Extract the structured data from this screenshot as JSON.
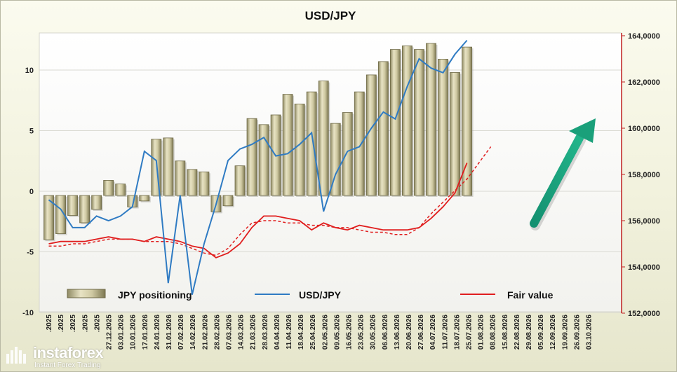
{
  "chart_data": {
    "type": "bar+line",
    "title": "USD/JPY",
    "left_axis": {
      "min": -10,
      "max": 13,
      "ticks": [
        -10,
        -5,
        0,
        5,
        10
      ]
    },
    "right_axis": {
      "min": 152000,
      "max": 164000,
      "ticks": [
        "152,0000",
        "154,0000",
        "156,0000",
        "158,0000",
        "160,0000",
        "162,0000",
        "164,0000"
      ],
      "tick_values": [
        152000,
        154000,
        156000,
        158000,
        160000,
        162000,
        164000
      ]
    },
    "x_labels": [
      "27.12.2025",
      "03.01.2026",
      "10.01.2026",
      "17.01.2026",
      "24.01.2026",
      "31.01.2026",
      "07.02.2026",
      "14.02.2026",
      "21.02.2026",
      "28.02.2026",
      "07.03.2026",
      "14.03.2026",
      "21.03.2026",
      "28.03.2026",
      "04.04.2026",
      "11.04.2026",
      "18.04.2026",
      "25.04.2026",
      "02.05.2026",
      "09.05.2026",
      "16.05.2026",
      "23.05.2026",
      "30.05.2026",
      "06.06.2026",
      "13.06.2026",
      "20.06.2026",
      "27.06.2026",
      "04.07.2026",
      "11.07.2026",
      "18.07.2026",
      "25.07.2026",
      "01.08.2026",
      "08.08.2026",
      "15.08.2026",
      "22.08.2026",
      "29.08.2026",
      "05.09.2026",
      "12.09.2026",
      "19.09.2026",
      "26.09.2026",
      "03.10.2026"
    ],
    "x_labels_left_truncated": [
      ".2025",
      ".2025",
      ".2025",
      ".2025",
      ".2025"
    ],
    "positioning_series": {
      "name": "JPY positioning",
      "values": [
        -4.0,
        -3.5,
        -2.0,
        -2.6,
        -1.5,
        0.9,
        0.6,
        -1.3,
        -0.8,
        4.3,
        4.4,
        2.5,
        1.8,
        1.6,
        -1.7,
        -1.2,
        2.1,
        6.0,
        5.5,
        6.3,
        8.0,
        7.2,
        8.2,
        9.1,
        5.6,
        6.5,
        8.2,
        9.6,
        10.7,
        11.7,
        12.0,
        11.7,
        12.2,
        10.9,
        9.8,
        11.9
      ]
    },
    "usdjpy_series": {
      "name": "USD/JPY",
      "values": [
        156.9,
        156.5,
        155.7,
        155.7,
        156.2,
        156.0,
        156.2,
        156.6,
        159.0,
        158.6,
        153.3,
        157.1,
        152.8,
        155.0,
        156.7,
        158.6,
        159.1,
        159.3,
        159.6,
        158.8,
        158.9,
        159.3,
        159.8,
        156.4,
        158.0,
        159.0,
        159.2,
        160.0,
        160.7,
        160.4,
        161.8,
        163.0,
        162.6,
        162.4,
        163.2,
        163.8
      ]
    },
    "fair_value_series": {
      "name": "Fair value",
      "values": [
        155.0,
        155.1,
        155.1,
        155.1,
        155.2,
        155.3,
        155.2,
        155.2,
        155.1,
        155.3,
        155.2,
        155.1,
        154.9,
        154.8,
        154.4,
        154.6,
        155.0,
        155.7,
        156.2,
        156.2,
        156.1,
        156.0,
        155.6,
        155.9,
        155.7,
        155.6,
        155.8,
        155.7,
        155.6,
        155.6,
        155.6,
        155.7,
        156.1,
        156.6,
        157.2,
        158.5
      ]
    },
    "fair_value_forecast": {
      "name": "Fair value (dashed)",
      "values": [
        154.9,
        154.9,
        155.0,
        155.0,
        155.1,
        155.2,
        155.2,
        155.2,
        155.1,
        155.1,
        155.1,
        155.0,
        154.8,
        154.6,
        154.5,
        154.8,
        155.4,
        155.9,
        156.0,
        156.0,
        155.9,
        155.9,
        155.8,
        155.8,
        155.7,
        155.7,
        155.6,
        155.5,
        155.5,
        155.4,
        155.4,
        155.7,
        156.3,
        156.8,
        157.3,
        157.8,
        158.5,
        159.2
      ]
    },
    "colors": {
      "bars": "#c9c39a",
      "usdjpy": "#2f7bc3",
      "fair_value": "#e01e1e",
      "arrow": "#1aa07a"
    },
    "legend_placement": "bottom",
    "grid": true
  },
  "legend": {
    "positioning": "JPY positioning",
    "usdjpy": "USD/JPY",
    "fair_value": "Fair value"
  },
  "watermark": {
    "brand": "instaforex",
    "tagline": "Instant Forex Trading"
  }
}
